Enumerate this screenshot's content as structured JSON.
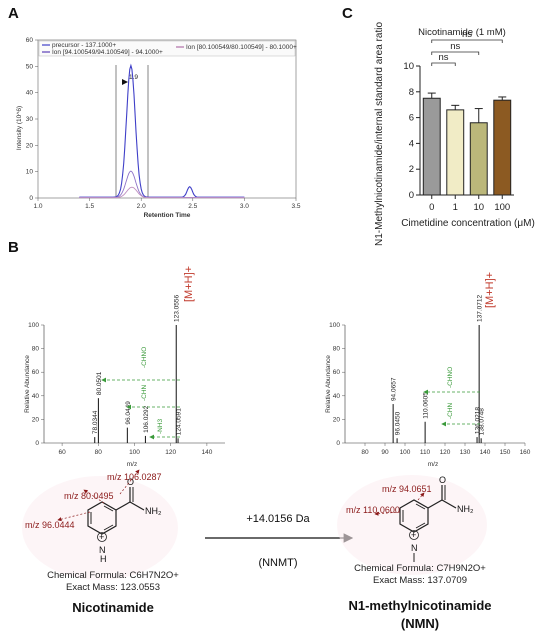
{
  "panels": {
    "A": "A",
    "B": "B",
    "C": "C"
  },
  "chromatogram": {
    "ylabel": "Intensity (10^6)",
    "xlabel": "Retention Time",
    "peak_label": "1.9",
    "x_ticks": [
      "1.0",
      "1.5",
      "2.0",
      "2.5",
      "3.0",
      "3.5"
    ],
    "y_ticks": [
      "0",
      "10",
      "20",
      "30",
      "40",
      "50",
      "60"
    ],
    "legend": [
      {
        "label": "precursor - 137.1000+",
        "color": "#3f3fc8"
      },
      {
        "label": "Ion [94.100549/94.100549] - 94.1000+",
        "color": "#5b3fb8"
      },
      {
        "label": "Ion [80.100549/80.100549] - 80.1000+",
        "color": "#b06fa8"
      }
    ],
    "series": {
      "precursor_peak_at": 1.9,
      "precursor_height": 50,
      "ion94_peak_at": 1.9,
      "ion94_height": 10,
      "second_peak_at": 2.47,
      "second_height": 4
    }
  },
  "chart_data": {
    "type": "bar",
    "title": "Nicotinamide (1 mM)",
    "categories": [
      "0",
      "1",
      "10",
      "100"
    ],
    "values": [
      7.5,
      6.6,
      5.6,
      7.35
    ],
    "errors": [
      0.4,
      0.35,
      1.1,
      0.25
    ],
    "colors": [
      "#9a9a9a",
      "#f1ecc6",
      "#bbb77a",
      "#8c5a22"
    ],
    "ylim": [
      0,
      10
    ],
    "yticks": [
      "0",
      "2",
      "4",
      "6",
      "8",
      "10"
    ],
    "ylabel": "N1-Methylnicotinamide/internal standard area ratio",
    "xlabel": "Cimetidine concentration (μM)",
    "significance": [
      "ns",
      "ns",
      "ns"
    ]
  },
  "spectrum_left": {
    "ylabel": "Relative Abundance",
    "xlabel": "m/z",
    "x_ticks": [
      "60",
      "80",
      "100",
      "120",
      "140"
    ],
    "y_ticks": [
      "0",
      "20",
      "40",
      "60",
      "80",
      "100"
    ],
    "precursor_label": "[M+H]+",
    "peaks": [
      {
        "mz": 78.0344,
        "rel": 5,
        "label": "78.0344"
      },
      {
        "mz": 80.0501,
        "rel": 38,
        "label": "80.0501"
      },
      {
        "mz": 96.0449,
        "rel": 13,
        "label": "96.0449"
      },
      {
        "mz": 106.0292,
        "rel": 6,
        "label": "106.0292"
      },
      {
        "mz": 123.0556,
        "rel": 100,
        "label": "123.0556"
      },
      {
        "mz": 124.0591,
        "rel": 4,
        "label": "124.0591"
      }
    ],
    "losses": [
      "-CHNO",
      "-CHN",
      "-NH3"
    ]
  },
  "spectrum_right": {
    "ylabel": "Relative Abundance",
    "xlabel": "m/z",
    "x_ticks": [
      "80",
      "90",
      "100",
      "110",
      "120",
      "130",
      "140",
      "150",
      "160"
    ],
    "y_ticks": [
      "0",
      "20",
      "40",
      "60",
      "80",
      "100"
    ],
    "precursor_label": "[M+H]+",
    "peaks": [
      {
        "mz": 94.0657,
        "rel": 33,
        "label": "94.0657"
      },
      {
        "mz": 96.045,
        "rel": 4,
        "label": "96.0450"
      },
      {
        "mz": 110.0605,
        "rel": 18,
        "label": "110.0605"
      },
      {
        "mz": 136.0218,
        "rel": 5,
        "label": "136.0218"
      },
      {
        "mz": 137.0712,
        "rel": 100,
        "label": "137.0712"
      },
      {
        "mz": 138.0748,
        "rel": 4,
        "label": "138.0748"
      }
    ],
    "losses": [
      "-CHNO",
      "-CHN"
    ]
  },
  "nicotinamide": {
    "fragments": [
      "m/z 106.0287",
      "m/z 80.0495",
      "m/z 96.0444"
    ],
    "formula": "Chemical Formula: C6H7N2O+",
    "mass": "Exact Mass: 123.0553",
    "name": "Nicotinamide"
  },
  "nmn": {
    "fragments": [
      "m/z 94.0651",
      "m/z 110.0600"
    ],
    "formula": "Chemical Formula: C7H9N2O+",
    "mass": "Exact Mass: 137.0709",
    "name": "N1-methylnicotinamide",
    "abbr": "(NMN)"
  },
  "reaction": {
    "mass_shift": "+14.0156 Da",
    "enzyme": "(NNMT)"
  }
}
